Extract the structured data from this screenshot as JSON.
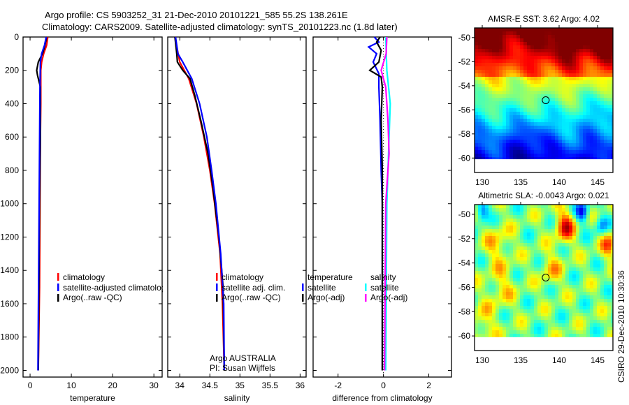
{
  "title_line1": "Argo profile: CS 5903252_31 21-Dec-2010 20101221_585 55.2S 138.261E",
  "title_line2": "Climatology: CARS2009. Satellite-adjusted climatology: synTS_20101223.nc (1.8d later)",
  "credit": "CSIRO 29-Dec-2010 10:30:36",
  "colors": {
    "climatology": "#ff0000",
    "satellite": "#0000ff",
    "argo": "#000000",
    "sal_satellite": "#00ffff",
    "sal_argo": "#ff00ff"
  },
  "chart_data": [
    {
      "type": "line",
      "xlabel": "temperature",
      "ylabel": "",
      "xlim": [
        -1.7,
        32
      ],
      "ylim": [
        2040,
        0
      ],
      "xticks": [
        "0",
        "10",
        "20",
        "30"
      ],
      "xtick_values": [
        0,
        10,
        20,
        30
      ],
      "yticks": [
        "0",
        "200",
        "400",
        "600",
        "800",
        "1000",
        "1200",
        "1400",
        "1600",
        "1800",
        "2000"
      ],
      "ytick_values": [
        0,
        200,
        400,
        600,
        800,
        1000,
        1200,
        1400,
        1600,
        1800,
        2000
      ],
      "legend": [
        "climatology",
        "satellite-adjusted climatology",
        "Argo(..raw -QC)"
      ],
      "legend_placement": "center-left",
      "series": [
        {
          "name": "climatology",
          "color": "#ff0000",
          "depth": [
            0,
            50,
            100,
            150,
            200,
            400,
            600,
            1000,
            1500,
            2000
          ],
          "values": [
            4.3,
            4.0,
            3.3,
            2.8,
            2.6,
            2.6,
            2.5,
            2.4,
            2.3,
            2.0
          ]
        },
        {
          "name": "Argo(..raw -QC)",
          "color": "#000000",
          "depth": [
            0,
            50,
            100,
            150,
            200,
            230,
            300,
            600,
            1000,
            2000
          ],
          "values": [
            4.0,
            3.6,
            3.0,
            2.0,
            1.6,
            1.8,
            2.5,
            2.5,
            2.3,
            2.0
          ]
        },
        {
          "name": "satellite-adjusted climatology",
          "color": "#0000ff",
          "depth": [
            0,
            50,
            100,
            150,
            300,
            1000,
            2000
          ],
          "values": [
            3.9,
            3.5,
            2.8,
            2.5,
            2.4,
            2.2,
            1.9
          ]
        }
      ]
    },
    {
      "type": "line",
      "xlabel": "salinity",
      "xlim": [
        33.8,
        36.1
      ],
      "ylim": [
        2040,
        0
      ],
      "xticks": [
        "34",
        "34.5",
        "35",
        "35.5",
        "36"
      ],
      "xtick_values": [
        34,
        34.5,
        35,
        35.5,
        36
      ],
      "legend": [
        "climatology",
        "satellite adj. clim.",
        "Argo(..raw -QC)"
      ],
      "legend_placement": "center-right",
      "annotation": [
        "Argo AUSTRALIA",
        "PI: Susan Wijffels"
      ],
      "series": [
        {
          "name": "climatology",
          "color": "#ff0000",
          "depth": [
            0,
            150,
            250,
            400,
            600,
            800,
            1000,
            1300,
            1600,
            2000
          ],
          "values": [
            33.92,
            34.0,
            34.15,
            34.28,
            34.4,
            34.5,
            34.58,
            34.67,
            34.71,
            34.74
          ]
        },
        {
          "name": "Argo(..raw -QC)",
          "color": "#000000",
          "depth": [
            0,
            100,
            150,
            200,
            250,
            350,
            500,
            700,
            900,
            1200,
            1500,
            2000
          ],
          "values": [
            33.92,
            33.95,
            33.96,
            34.05,
            34.17,
            34.25,
            34.35,
            34.47,
            34.55,
            34.65,
            34.72,
            34.74
          ]
        },
        {
          "name": "satellite adj. clim.",
          "color": "#0000ff",
          "depth": [
            0,
            100,
            150,
            250,
            400,
            600,
            800,
            1000,
            1300,
            1600,
            2000
          ],
          "values": [
            33.93,
            33.97,
            34.05,
            34.2,
            34.33,
            34.45,
            34.53,
            34.6,
            34.68,
            34.73,
            34.74
          ]
        }
      ]
    },
    {
      "type": "line",
      "xlabel": "difference from climatology",
      "xlim": [
        -3.1,
        3.0
      ],
      "ylim": [
        2040,
        0
      ],
      "xticks": [
        "-2",
        "0",
        "2"
      ],
      "xtick_values": [
        -2,
        0,
        2
      ],
      "legend_headers": [
        "temperature",
        "salinity"
      ],
      "legend": [
        "satellite",
        "Argo(-adj)",
        "satellite",
        "Argo(-adj)"
      ],
      "series": [
        {
          "name": "temperature satellite",
          "color": "#0000ff",
          "depth": [
            0,
            30,
            60,
            100,
            150,
            220,
            300,
            500,
            800,
            1000,
            2000
          ],
          "values": [
            -0.4,
            -0.2,
            -0.65,
            -0.3,
            -0.45,
            -0.2,
            -0.2,
            -0.15,
            -0.1,
            -0.05,
            -0.05
          ]
        },
        {
          "name": "temperature Argo(-adj)",
          "color": "#000000",
          "depth": [
            0,
            30,
            80,
            150,
            200,
            240,
            300,
            500,
            800,
            2000
          ],
          "values": [
            -0.15,
            -0.3,
            -0.1,
            -0.2,
            -0.6,
            -0.1,
            -0.05,
            -0.1,
            -0.05,
            -0.05
          ]
        },
        {
          "name": "salinity satellite",
          "color": "#00ffff",
          "depth": [
            0,
            200,
            400,
            600,
            1000,
            2000
          ],
          "values": [
            0.1,
            0.15,
            0.3,
            0.25,
            0.15,
            0.1
          ]
        },
        {
          "name": "salinity Argo(-adj)",
          "color": "#ff00ff",
          "depth": [
            0,
            100,
            200,
            300,
            500,
            700,
            1000,
            2000
          ],
          "values": [
            0.15,
            0.12,
            -0.1,
            0.1,
            0.2,
            0.25,
            0.1,
            0.05
          ]
        }
      ]
    },
    {
      "type": "heatmap",
      "title": "AMSR-E SST: 3.62 Argo: 4.02",
      "xlim": [
        129,
        147
      ],
      "ylim": [
        -61.2,
        -49.2
      ],
      "xticks": [
        "130",
        "135",
        "140",
        "145"
      ],
      "xtick_values": [
        130,
        135,
        140,
        145
      ],
      "yticks": [
        "-50",
        "-52",
        "-54",
        "-56",
        "-58",
        "-60"
      ],
      "ytick_values": [
        -50,
        -52,
        -54,
        -56,
        -58,
        -60
      ],
      "marker": {
        "lon": 138.261,
        "lat": -55.2
      }
    },
    {
      "type": "heatmap",
      "title": "Altimetric SLA: -0.0043 Argo: 0.021",
      "xlim": [
        129,
        147
      ],
      "ylim": [
        -61.2,
        -49.2
      ],
      "xticks": [
        "130",
        "135",
        "140",
        "145"
      ],
      "xtick_values": [
        130,
        135,
        140,
        145
      ],
      "yticks": [
        "-50",
        "-52",
        "-54",
        "-56",
        "-58",
        "-60"
      ],
      "ytick_values": [
        -50,
        -52,
        -54,
        -56,
        -58,
        -60
      ],
      "marker": {
        "lon": 138.261,
        "lat": -55.2
      }
    }
  ]
}
